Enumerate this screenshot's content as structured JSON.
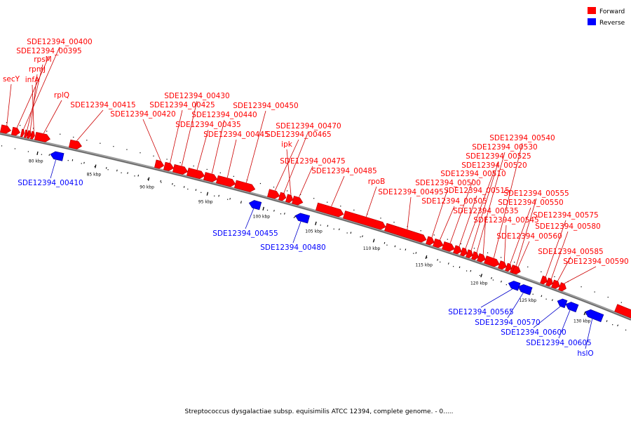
{
  "legend": {
    "forward_label": "Forward",
    "reverse_label": "Reverse",
    "forward_color": "#ff0000",
    "reverse_color": "#0000ff"
  },
  "caption": "Streptococcus dysgalactiae subsp. equisimilis ATCC 12394, complete genome. - 0.....",
  "colors": {
    "backbone": "#888888",
    "leader": "#000000",
    "forward": "#ff0000",
    "reverse": "#0000ff"
  },
  "ticks": [
    {
      "label": "80 kbp"
    },
    {
      "label": "85 kbp"
    },
    {
      "label": "90 kbp"
    },
    {
      "label": "95 kbp"
    },
    {
      "label": "100 kbp"
    },
    {
      "label": "105 kbp"
    },
    {
      "label": "110 kbp"
    },
    {
      "label": "115 kbp"
    },
    {
      "label": "120 kbp"
    },
    {
      "label": "125 kbp"
    },
    {
      "label": "130 kbp"
    }
  ],
  "genes": [
    {
      "label": "secY",
      "strand": "forward"
    },
    {
      "label": "SDE12394_00395",
      "strand": "forward"
    },
    {
      "label": "SDE12394_00400",
      "strand": "forward"
    },
    {
      "label": "rpsM",
      "strand": "forward"
    },
    {
      "label": "rpmJ",
      "strand": "forward"
    },
    {
      "label": "infA",
      "strand": "forward"
    },
    {
      "label": "rplQ",
      "strand": "forward"
    },
    {
      "label": "SDE12394_00410",
      "strand": "reverse"
    },
    {
      "label": "SDE12394_00415",
      "strand": "forward"
    },
    {
      "label": "SDE12394_00420",
      "strand": "forward"
    },
    {
      "label": "SDE12394_00425",
      "strand": "forward"
    },
    {
      "label": "SDE12394_00430",
      "strand": "forward"
    },
    {
      "label": "SDE12394_00435",
      "strand": "forward"
    },
    {
      "label": "SDE12394_00440",
      "strand": "forward"
    },
    {
      "label": "SDE12394_00445",
      "strand": "forward"
    },
    {
      "label": "SDE12394_00450",
      "strand": "forward"
    },
    {
      "label": "SDE12394_00455",
      "strand": "reverse"
    },
    {
      "label": "SDE12394_00465",
      "strand": "forward"
    },
    {
      "label": "SDE12394_00470",
      "strand": "forward"
    },
    {
      "label": "ipk",
      "strand": "forward"
    },
    {
      "label": "SDE12394_00475",
      "strand": "forward"
    },
    {
      "label": "SDE12394_00480",
      "strand": "reverse"
    },
    {
      "label": "SDE12394_00485",
      "strand": "forward"
    },
    {
      "label": "rpoB",
      "strand": "forward"
    },
    {
      "label": "SDE12394_00495",
      "strand": "forward"
    },
    {
      "label": "SDE12394_00500",
      "strand": "forward"
    },
    {
      "label": "SDE12394_00505",
      "strand": "forward"
    },
    {
      "label": "SDE12394_00510",
      "strand": "forward"
    },
    {
      "label": "SDE12394_00515",
      "strand": "forward"
    },
    {
      "label": "SDE12394_00520",
      "strand": "forward"
    },
    {
      "label": "SDE12394_00525",
      "strand": "forward"
    },
    {
      "label": "SDE12394_00530",
      "strand": "forward"
    },
    {
      "label": "SDE12394_00535",
      "strand": "forward"
    },
    {
      "label": "SDE12394_00540",
      "strand": "forward"
    },
    {
      "label": "SDE12394_00545",
      "strand": "forward"
    },
    {
      "label": "SDE12394_00550",
      "strand": "forward"
    },
    {
      "label": "SDE12394_00555",
      "strand": "forward"
    },
    {
      "label": "SDE12394_00560",
      "strand": "forward"
    },
    {
      "label": "SDE12394_00565",
      "strand": "reverse"
    },
    {
      "label": "SDE12394_00570",
      "strand": "reverse"
    },
    {
      "label": "SDE12394_00575",
      "strand": "forward"
    },
    {
      "label": "SDE12394_00580",
      "strand": "forward"
    },
    {
      "label": "SDE12394_00585",
      "strand": "forward"
    },
    {
      "label": "SDE12394_00590",
      "strand": "forward"
    },
    {
      "label": "SDE12394_00600",
      "strand": "reverse"
    },
    {
      "label": "SDE12394_00605",
      "strand": "reverse"
    },
    {
      "label": "hslO",
      "strand": "reverse"
    }
  ]
}
